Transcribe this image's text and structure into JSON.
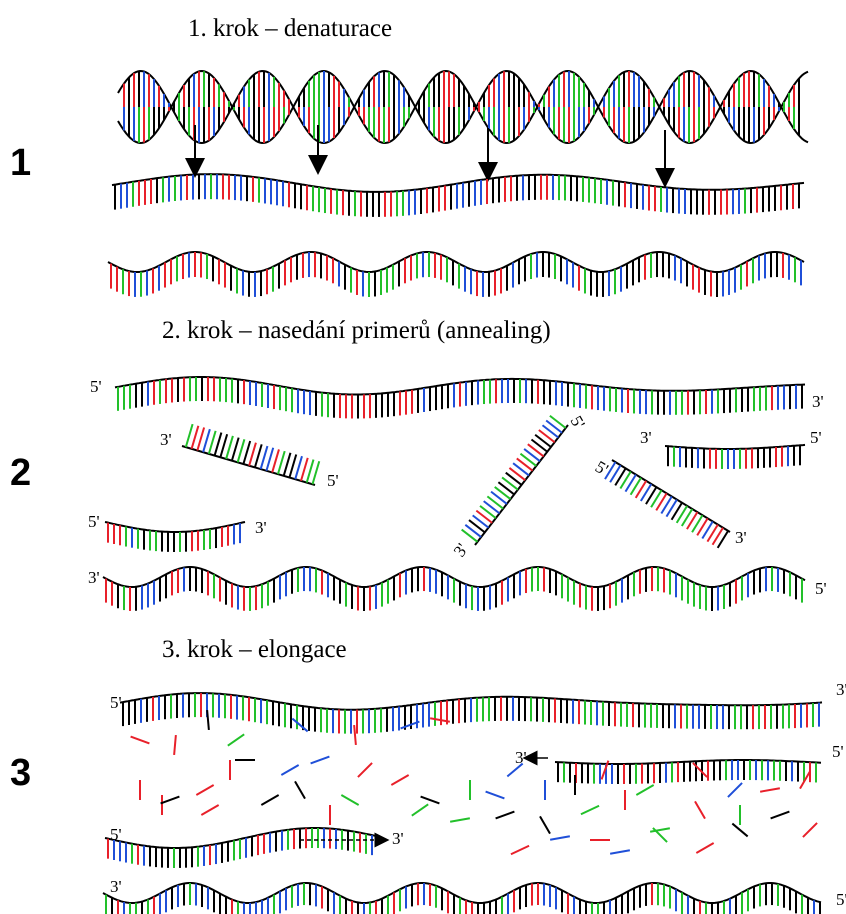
{
  "steps": [
    {
      "number": "1",
      "title": "1. krok – denaturace"
    },
    {
      "number": "2",
      "title": "2. krok – nasedání primerů (annealing)"
    },
    {
      "number": "3",
      "title": "3. krok – elongace"
    }
  ],
  "end_labels": {
    "five": "5'",
    "three": "3'"
  },
  "colors": {
    "strand": "#000000",
    "bases": [
      "#000000",
      "#e8202a",
      "#1f4fd8",
      "#22c02a"
    ]
  }
}
